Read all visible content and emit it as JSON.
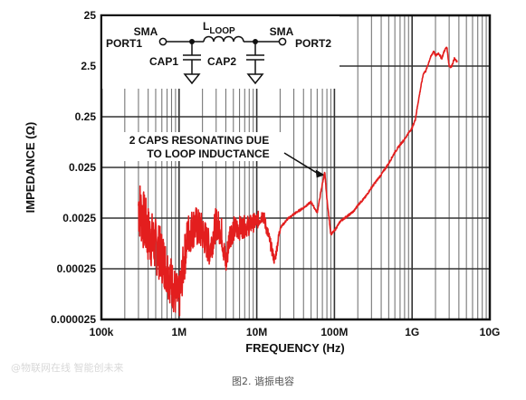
{
  "chart_data": {
    "type": "line",
    "title": "",
    "xlabel": "FREQUENCY (Hz)",
    "ylabel": "IMPEDANCE (Ω)",
    "xscale": "log",
    "yscale": "log",
    "xlim": [
      100000,
      10000000000
    ],
    "ylim": [
      2.5e-05,
      25
    ],
    "grid": true,
    "x_tick_labels": [
      "100k",
      "1M",
      "10M",
      "100M",
      "1G",
      "10G"
    ],
    "y_tick_labels": [
      "25",
      "2.5",
      "0.25",
      "0.025",
      "0.0025",
      "0.00025",
      "0.000025"
    ],
    "series": [
      {
        "color": "#e31e1e",
        "x": [
          300000,
          340000,
          400000,
          500000,
          620000,
          750000,
          900000,
          1000000,
          1100000,
          1300000,
          1600000,
          2000000,
          2500000,
          3000000,
          3500000,
          4000000,
          4500000,
          5000000,
          6000000,
          7000000,
          8000000,
          9000000,
          10000000,
          11000000,
          12000000,
          14000000,
          17000000,
          20000000,
          25000000,
          30000000,
          40000000,
          50000000,
          60000000,
          70000000,
          75000000,
          80000000,
          90000000,
          100000000,
          120000000,
          150000000,
          180000000,
          200000000,
          250000000,
          300000000,
          400000000,
          500000000,
          600000000,
          700000000,
          800000000,
          900000000,
          1000000000,
          1100000000,
          1200000000,
          1300000000,
          1400000000,
          1500000000,
          1700000000,
          1900000000,
          2000000000,
          2200000000,
          2400000000,
          2600000000,
          2800000000,
          3000000000,
          3200000000,
          3500000000,
          3800000000
        ],
        "y": [
          0.0045,
          0.0025,
          0.0012,
          0.0007,
          0.0004,
          0.00018,
          8e-05,
          6e-05,
          0.0002,
          0.0012,
          0.0018,
          0.0013,
          0.0006,
          0.002,
          0.0014,
          0.0003,
          0.0012,
          0.0015,
          0.0016,
          0.0017,
          0.0018,
          0.002,
          0.0022,
          0.0025,
          0.003,
          0.0012,
          0.00035,
          0.0016,
          0.0024,
          0.003,
          0.004,
          0.0052,
          0.0032,
          0.012,
          0.02,
          0.006,
          0.0012,
          0.0014,
          0.0022,
          0.0028,
          0.0035,
          0.0045,
          0.0065,
          0.01,
          0.018,
          0.03,
          0.05,
          0.07,
          0.09,
          0.12,
          0.15,
          0.22,
          0.5,
          1.0,
          1.8,
          2.0,
          3.5,
          5.0,
          4.0,
          4.5,
          3.5,
          5.0,
          6.0,
          2.5,
          2.4,
          3.5,
          3.0
        ],
        "noise_band_until_hz": 20000000
      }
    ],
    "annotations": [
      {
        "text_lines": [
          "2 CAPS RESONATING DUE",
          "TO LOOP INDUCTANCE"
        ],
        "arrow_to": {
          "x": 75000000,
          "y": 0.02
        }
      }
    ],
    "schematic": {
      "sma_left": "SMA",
      "port_left": "PORT1",
      "inductor_label_main": "L",
      "inductor_label_sub": "LOOP",
      "sma_right": "SMA",
      "port_right": "PORT2",
      "cap_left": "CAP1",
      "cap_right": "CAP2"
    }
  },
  "caption": "图2. 谐振电容",
  "watermark": "@物联网在线 智能创未来"
}
